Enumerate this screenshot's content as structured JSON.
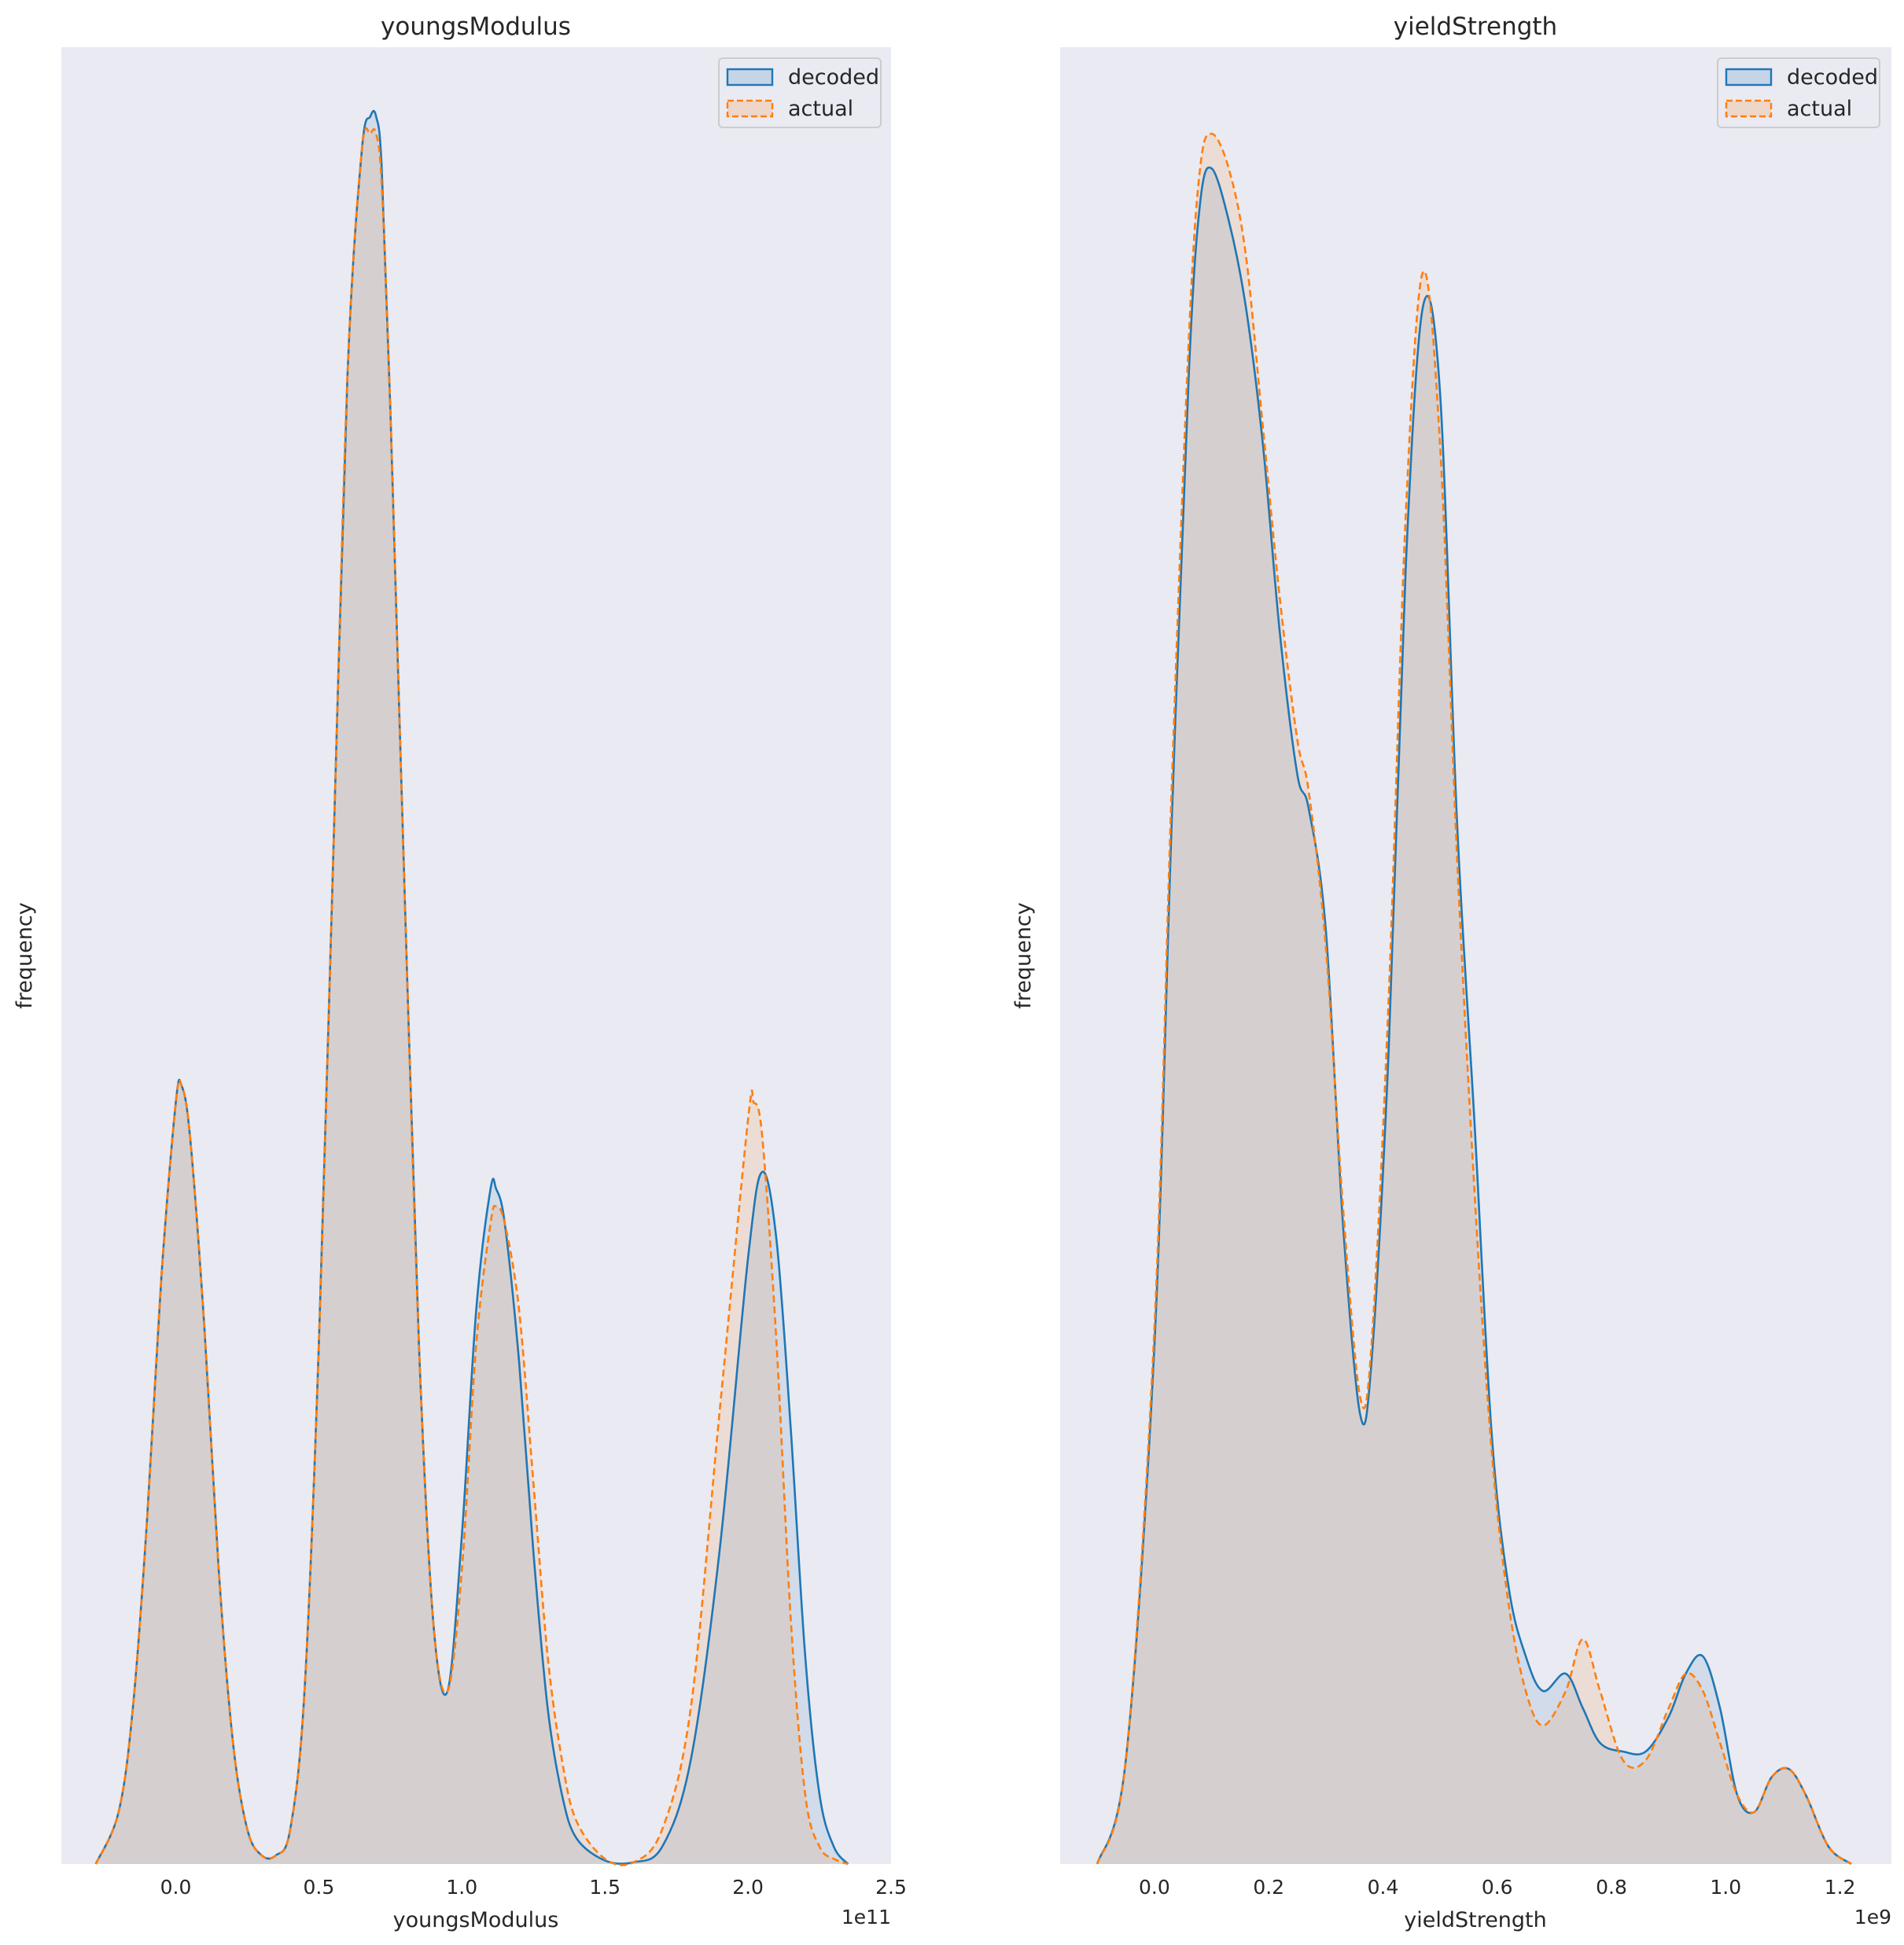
{
  "colors": {
    "decoded": "#1f77b4",
    "actual": "#ff7f0e",
    "axes_background": "#eaeaf2"
  },
  "chart_data": [
    {
      "type": "area",
      "title": "youngsModulus",
      "xlabel": "youngsModulus",
      "ylabel": "frequency",
      "x_offset_label": "1e11",
      "xlim": [
        -0.4,
        2.5
      ],
      "ylim": [
        0,
        1.05
      ],
      "x_ticks": [
        0.0,
        0.5,
        1.0,
        1.5,
        2.0,
        2.5
      ],
      "x_tick_labels": [
        "0.0",
        "0.5",
        "1.0",
        "1.5",
        "2.0",
        "2.5"
      ],
      "y_ticks_shown": false,
      "grid": false,
      "legend": {
        "position": "top-right",
        "entries": [
          "decoded",
          "actual"
        ]
      },
      "series": [
        {
          "name": "decoded",
          "line_style": "solid",
          "x": [
            -0.28,
            -0.2,
            -0.15,
            -0.1,
            -0.05,
            0.0,
            0.02,
            0.05,
            0.1,
            0.15,
            0.2,
            0.25,
            0.3,
            0.35,
            0.4,
            0.45,
            0.5,
            0.55,
            0.6,
            0.65,
            0.68,
            0.7,
            0.72,
            0.75,
            0.8,
            0.85,
            0.9,
            0.95,
            1.0,
            1.05,
            1.1,
            1.12,
            1.15,
            1.2,
            1.25,
            1.3,
            1.35,
            1.4,
            1.5,
            1.6,
            1.7,
            1.8,
            1.9,
            2.0,
            2.05,
            2.1,
            2.15,
            2.2,
            2.25,
            2.3,
            2.35
          ],
          "y": [
            0.0,
            0.03,
            0.09,
            0.2,
            0.34,
            0.44,
            0.45,
            0.42,
            0.31,
            0.17,
            0.07,
            0.02,
            0.005,
            0.005,
            0.02,
            0.1,
            0.3,
            0.58,
            0.86,
            0.99,
            1.01,
            1.01,
            0.98,
            0.84,
            0.56,
            0.3,
            0.14,
            0.1,
            0.19,
            0.32,
            0.39,
            0.39,
            0.37,
            0.29,
            0.18,
            0.09,
            0.04,
            0.015,
            0.002,
            0.001,
            0.01,
            0.06,
            0.18,
            0.35,
            0.4,
            0.36,
            0.25,
            0.12,
            0.04,
            0.01,
            0.0
          ]
        },
        {
          "name": "actual",
          "line_style": "dashed",
          "x": [
            -0.28,
            -0.2,
            -0.15,
            -0.1,
            -0.05,
            0.0,
            0.02,
            0.05,
            0.1,
            0.15,
            0.2,
            0.25,
            0.3,
            0.35,
            0.4,
            0.45,
            0.5,
            0.55,
            0.6,
            0.65,
            0.68,
            0.7,
            0.72,
            0.75,
            0.8,
            0.85,
            0.9,
            0.95,
            1.0,
            1.05,
            1.1,
            1.12,
            1.15,
            1.2,
            1.25,
            1.3,
            1.35,
            1.4,
            1.5,
            1.6,
            1.7,
            1.8,
            1.9,
            2.0,
            2.02,
            2.05,
            2.1,
            2.15,
            2.2,
            2.25,
            2.3,
            2.35
          ],
          "y": [
            0.0,
            0.03,
            0.09,
            0.2,
            0.34,
            0.44,
            0.45,
            0.42,
            0.31,
            0.17,
            0.07,
            0.02,
            0.005,
            0.005,
            0.02,
            0.1,
            0.3,
            0.58,
            0.86,
            0.99,
            1.0,
            1.0,
            0.97,
            0.84,
            0.56,
            0.3,
            0.14,
            0.1,
            0.17,
            0.3,
            0.37,
            0.38,
            0.37,
            0.32,
            0.22,
            0.12,
            0.06,
            0.025,
            0.003,
            0.001,
            0.02,
            0.09,
            0.26,
            0.43,
            0.44,
            0.42,
            0.3,
            0.14,
            0.04,
            0.01,
            0.003,
            0.0
          ]
        }
      ]
    },
    {
      "type": "area",
      "title": "yieldStrength",
      "xlabel": "yieldStrength",
      "ylabel": "frequency",
      "x_offset_label": "1e9",
      "xlim": [
        -0.165,
        1.29
      ],
      "ylim": [
        0,
        1.05
      ],
      "x_ticks": [
        0.0,
        0.2,
        0.4,
        0.6,
        0.8,
        1.0,
        1.2
      ],
      "x_tick_labels": [
        "0.0",
        "0.2",
        "0.4",
        "0.6",
        "0.8",
        "1.0",
        "1.2"
      ],
      "y_ticks_shown": false,
      "grid": false,
      "legend": {
        "position": "top-right",
        "entries": [
          "decoded",
          "actual"
        ]
      },
      "series": [
        {
          "name": "decoded",
          "line_style": "solid",
          "x": [
            -0.1,
            -0.05,
            0.0,
            0.03,
            0.06,
            0.08,
            0.1,
            0.13,
            0.16,
            0.19,
            0.22,
            0.25,
            0.27,
            0.3,
            0.33,
            0.36,
            0.38,
            0.41,
            0.44,
            0.47,
            0.5,
            0.53,
            0.56,
            0.59,
            0.62,
            0.65,
            0.68,
            0.72,
            0.75,
            0.78,
            0.82,
            0.86,
            0.9,
            0.93,
            0.96,
            0.99,
            1.02,
            1.05,
            1.08,
            1.11,
            1.14,
            1.18,
            1.22
          ],
          "y": [
            0.0,
            0.06,
            0.3,
            0.6,
            0.86,
            0.96,
            0.98,
            0.95,
            0.9,
            0.82,
            0.71,
            0.63,
            0.61,
            0.54,
            0.37,
            0.26,
            0.29,
            0.47,
            0.75,
            0.9,
            0.85,
            0.6,
            0.43,
            0.25,
            0.16,
            0.12,
            0.1,
            0.11,
            0.09,
            0.07,
            0.065,
            0.065,
            0.085,
            0.11,
            0.12,
            0.09,
            0.04,
            0.03,
            0.05,
            0.055,
            0.04,
            0.01,
            0.0
          ]
        },
        {
          "name": "actual",
          "line_style": "dashed",
          "x": [
            -0.1,
            -0.05,
            0.0,
            0.03,
            0.06,
            0.08,
            0.1,
            0.13,
            0.16,
            0.19,
            0.22,
            0.25,
            0.27,
            0.3,
            0.33,
            0.36,
            0.38,
            0.41,
            0.44,
            0.47,
            0.5,
            0.53,
            0.56,
            0.59,
            0.62,
            0.65,
            0.68,
            0.72,
            0.75,
            0.78,
            0.82,
            0.86,
            0.9,
            0.93,
            0.96,
            0.99,
            1.02,
            1.05,
            1.08,
            1.11,
            1.14,
            1.18,
            1.22
          ],
          "y": [
            0.0,
            0.06,
            0.31,
            0.62,
            0.88,
            0.98,
            1.0,
            0.98,
            0.93,
            0.83,
            0.73,
            0.65,
            0.62,
            0.53,
            0.38,
            0.27,
            0.3,
            0.5,
            0.78,
            0.92,
            0.82,
            0.58,
            0.39,
            0.24,
            0.15,
            0.1,
            0.08,
            0.1,
            0.13,
            0.1,
            0.06,
            0.06,
            0.09,
            0.11,
            0.1,
            0.07,
            0.04,
            0.03,
            0.05,
            0.055,
            0.04,
            0.01,
            0.0
          ]
        }
      ]
    }
  ]
}
